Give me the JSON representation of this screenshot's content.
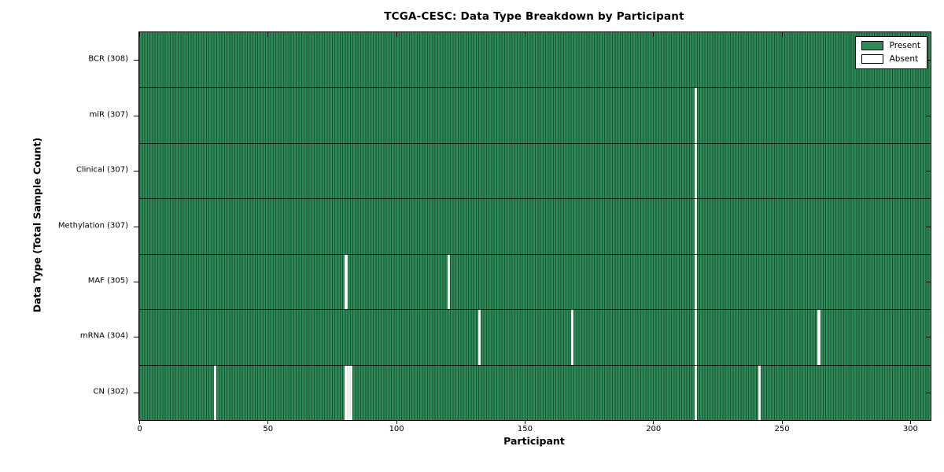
{
  "chart_data": {
    "type": "heatmap",
    "title": "TCGA-CESC: Data Type Breakdown by Participant",
    "xlabel": "Participant",
    "ylabel": "Data Type (Total Sample Count)",
    "legend": [
      {
        "label": "Present"
      },
      {
        "label": "Absent"
      }
    ],
    "legend_position": "upper right",
    "x_ticks": [
      0,
      50,
      100,
      150,
      200,
      250,
      300
    ],
    "xlim": [
      0,
      308
    ],
    "n_participants": 308,
    "grid": "row-separators-only",
    "colors": {
      "present": "#2E8B57",
      "absent": "#FFFFFF",
      "bar_edge": "#1A5234",
      "axis": "#000000",
      "background": "#FFFFFF"
    },
    "rows": [
      {
        "label": "BCR",
        "total": 308,
        "absent_participants": []
      },
      {
        "label": "miR",
        "total": 307,
        "absent_participants": [
          216
        ]
      },
      {
        "label": "Clinical",
        "total": 307,
        "absent_participants": [
          216
        ]
      },
      {
        "label": "Methylation",
        "total": 307,
        "absent_participants": [
          216
        ]
      },
      {
        "label": "MAF",
        "total": 305,
        "absent_participants": [
          80,
          120,
          216
        ]
      },
      {
        "label": "mRNA",
        "total": 304,
        "absent_participants": [
          132,
          168,
          216,
          264
        ]
      },
      {
        "label": "CN",
        "total": 302,
        "absent_participants": [
          29,
          80,
          81,
          82,
          216,
          241
        ]
      }
    ]
  }
}
